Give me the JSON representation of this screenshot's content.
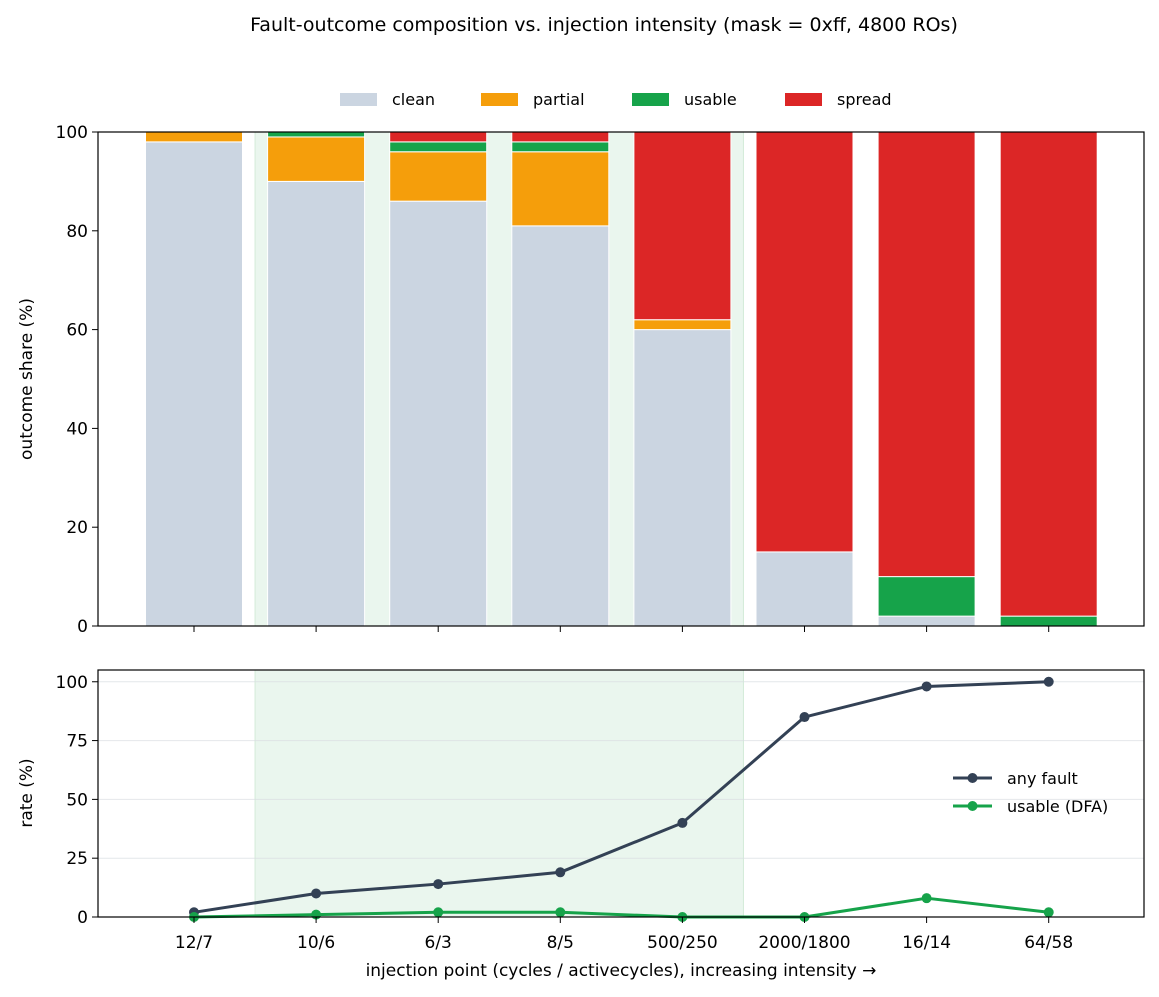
{
  "figure": {
    "title": "Fault-outcome composition vs. injection intensity  (mask = 0xff, 4800 ROs)"
  },
  "colors": {
    "clean": "#cbd5e1",
    "partial": "#f59e0b",
    "usable": "#16a34a",
    "spread": "#dc2626",
    "any_fault": "#334155",
    "usable_dfa": "#16a34a",
    "window_shade": "#eaf6ee"
  },
  "chart_data": [
    {
      "type": "bar",
      "stacked": true,
      "categories": [
        "12/7",
        "10/6",
        "6/3",
        "8/5",
        "500/250",
        "2000/1800",
        "16/14",
        "64/58"
      ],
      "series": [
        {
          "name": "clean",
          "values": [
            98,
            90,
            86,
            81,
            60,
            15,
            2,
            0
          ]
        },
        {
          "name": "partial",
          "values": [
            2,
            9,
            10,
            15,
            2,
            0,
            0,
            0
          ]
        },
        {
          "name": "usable",
          "values": [
            0,
            1,
            2,
            2,
            0,
            0,
            8,
            2
          ]
        },
        {
          "name": "spread",
          "values": [
            0,
            0,
            2,
            2,
            38,
            85,
            90,
            98
          ]
        }
      ],
      "title": "",
      "xlabel": "",
      "ylabel": "outcome share (%)",
      "ylim": [
        0,
        100
      ],
      "yticks": [
        0,
        20,
        40,
        60,
        80,
        100
      ],
      "legend": "top-center",
      "grid": false,
      "shaded_categories": [
        "10/6",
        "6/3",
        "8/5",
        "500/250"
      ]
    },
    {
      "type": "line",
      "categories": [
        "12/7",
        "10/6",
        "6/3",
        "8/5",
        "500/250",
        "2000/1800",
        "16/14",
        "64/58"
      ],
      "series": [
        {
          "name": "any fault",
          "values": [
            2,
            10,
            14,
            19,
            40,
            85,
            98,
            100
          ]
        },
        {
          "name": "usable (DFA)",
          "values": [
            0,
            1,
            2,
            2,
            0,
            0,
            8,
            2
          ]
        }
      ],
      "title": "",
      "xlabel": "injection point  (cycles / activecycles),  increasing intensity →",
      "ylabel": "rate (%)",
      "ylim": [
        0,
        105
      ],
      "yticks": [
        0,
        25,
        50,
        75,
        100
      ],
      "legend": "center-right",
      "grid": true,
      "shaded_categories": [
        "10/6",
        "6/3",
        "8/5",
        "500/250"
      ]
    }
  ]
}
